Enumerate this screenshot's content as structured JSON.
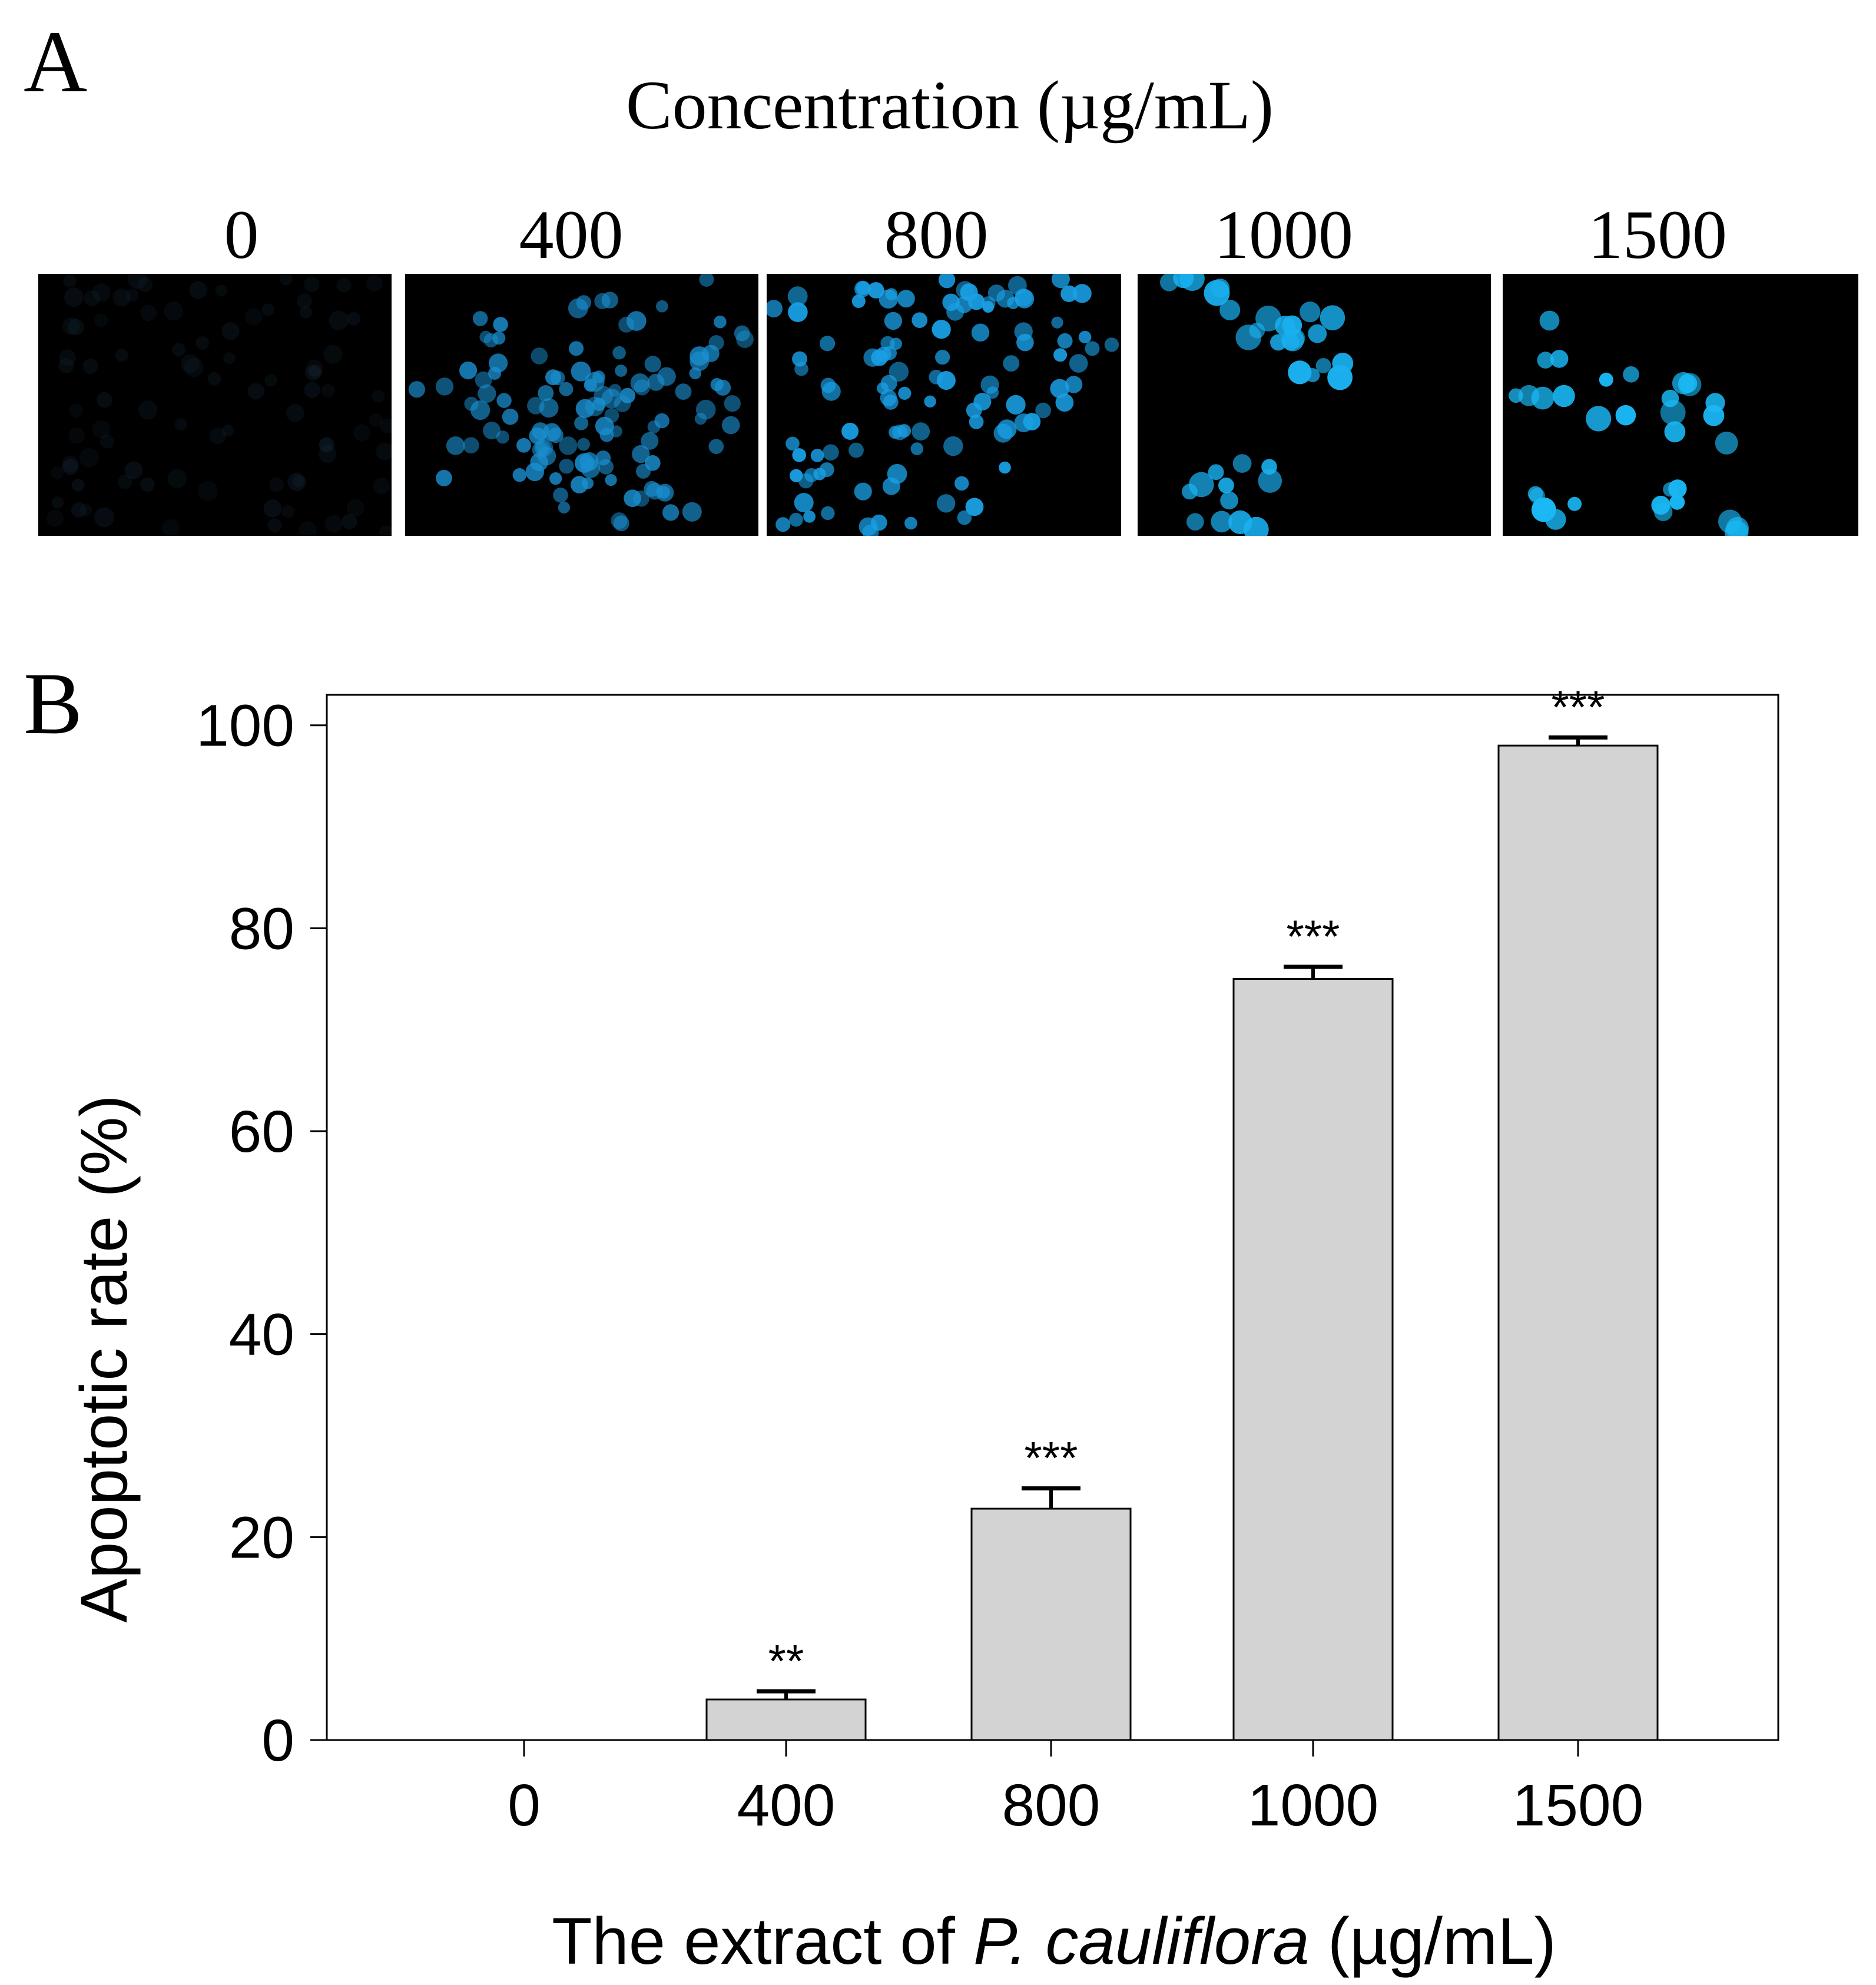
{
  "panel_a": {
    "label": "A",
    "title": "Concentration (µg/mL)",
    "images": [
      {
        "label": "0",
        "dot_color": "#1b3346",
        "count": 95,
        "brightness": 0.25
      },
      {
        "label": "400",
        "dot_color": "#1a8fd0",
        "count": 140,
        "brightness": 0.85
      },
      {
        "label": "800",
        "dot_color": "#1aa0e6",
        "count": 150,
        "brightness": 0.95
      },
      {
        "label": "1000",
        "dot_color": "#1ab0f0",
        "count": 45,
        "brightness": 1.0
      },
      {
        "label": "1500",
        "dot_color": "#1ab8f5",
        "count": 40,
        "brightness": 1.0
      }
    ]
  },
  "panel_b": {
    "label": "B"
  },
  "chart_data": {
    "type": "bar",
    "categories": [
      "0",
      "400",
      "800",
      "1000",
      "1500"
    ],
    "values": [
      0,
      4,
      22.8,
      75,
      98
    ],
    "errors": [
      0,
      0.8,
      2.0,
      1.2,
      0.8
    ],
    "significance": [
      "",
      "**",
      "***",
      "***",
      "***"
    ],
    "ylabel": "Apoptotic rate (%)",
    "xlabel_prefix": "The extract of ",
    "xlabel_italic": "P. cauliflora",
    "xlabel_suffix": " (µg/mL)",
    "ylim": [
      0,
      103
    ],
    "yticks": [
      0,
      20,
      40,
      60,
      80,
      100
    ],
    "bar_color": "#d3d3d3",
    "grid": false
  }
}
